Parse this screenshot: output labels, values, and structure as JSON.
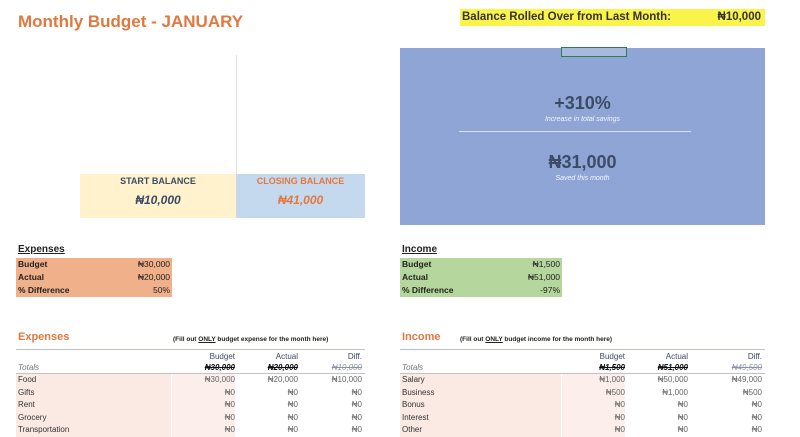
{
  "title": "Monthly Budget - JANUARY",
  "rollover": {
    "label": "Balance Rolled Over from Last Month:",
    "value": "₦10,000"
  },
  "savings": {
    "percent": "+310%",
    "percent_caption": "Increase in total savings",
    "amount": "₦31,000",
    "amount_caption": "Saved this month",
    "color": "#8FA5D6"
  },
  "balances": {
    "start_label": "START BALANCE",
    "start_value": "₦10,000",
    "closing_label": "CLOSING BALANCE",
    "closing_value": "₦41,000"
  },
  "expense_summary": {
    "heading": "Expenses",
    "rows": [
      {
        "label": "Budget",
        "value": "₦30,000"
      },
      {
        "label": "Actual",
        "value": "₦20,000"
      },
      {
        "label": "% Difference",
        "value": "50%"
      }
    ],
    "color": "#F0B08A"
  },
  "income_summary": {
    "heading": "Income",
    "rows": [
      {
        "label": "Budget",
        "value": "₦1,500"
      },
      {
        "label": "Actual",
        "value": "₦51,000"
      },
      {
        "label": "% Difference",
        "value": "-97%"
      }
    ],
    "color": "#B5D69C"
  },
  "expenses_table": {
    "heading": "Expenses",
    "note_pre": "(Fill out ",
    "note_em": "ONLY",
    "note_post": " budget expense for the month here)",
    "columns": [
      "Budget",
      "Actual",
      "Diff."
    ],
    "totals_label": "Totals",
    "totals": [
      "₦30,000",
      "₦20,000",
      "₦10,000"
    ],
    "rows": [
      {
        "label": "Food",
        "values": [
          "₦30,000",
          "₦20,000",
          "₦10,000"
        ]
      },
      {
        "label": "Gifts",
        "values": [
          "₦0",
          "₦0",
          "₦0"
        ]
      },
      {
        "label": "Rent",
        "values": [
          "₦0",
          "₦0",
          "₦0"
        ]
      },
      {
        "label": "Grocery",
        "values": [
          "₦0",
          "₦0",
          "₦0"
        ]
      },
      {
        "label": "Transportation",
        "values": [
          "₦0",
          "₦0",
          "₦0"
        ]
      }
    ]
  },
  "income_table": {
    "heading": "Income",
    "note_pre": "(Fill out ",
    "note_em": "ONLY",
    "note_post": " budget income for the month here)",
    "columns": [
      "Budget",
      "Actual",
      "Diff."
    ],
    "totals_label": "Totals",
    "totals": [
      "₦1,500",
      "₦51,000",
      "₦49,500"
    ],
    "rows": [
      {
        "label": "Salary",
        "values": [
          "₦1,000",
          "₦50,000",
          "₦49,000"
        ]
      },
      {
        "label": "Business",
        "values": [
          "₦500",
          "₦1,000",
          "₦500"
        ]
      },
      {
        "label": "Bonus",
        "values": [
          "₦0",
          "₦0",
          "₦0"
        ]
      },
      {
        "label": "Interest",
        "values": [
          "₦0",
          "₦0",
          "₦0"
        ]
      },
      {
        "label": "Other",
        "values": [
          "₦0",
          "₦0",
          "₦0"
        ]
      }
    ]
  }
}
